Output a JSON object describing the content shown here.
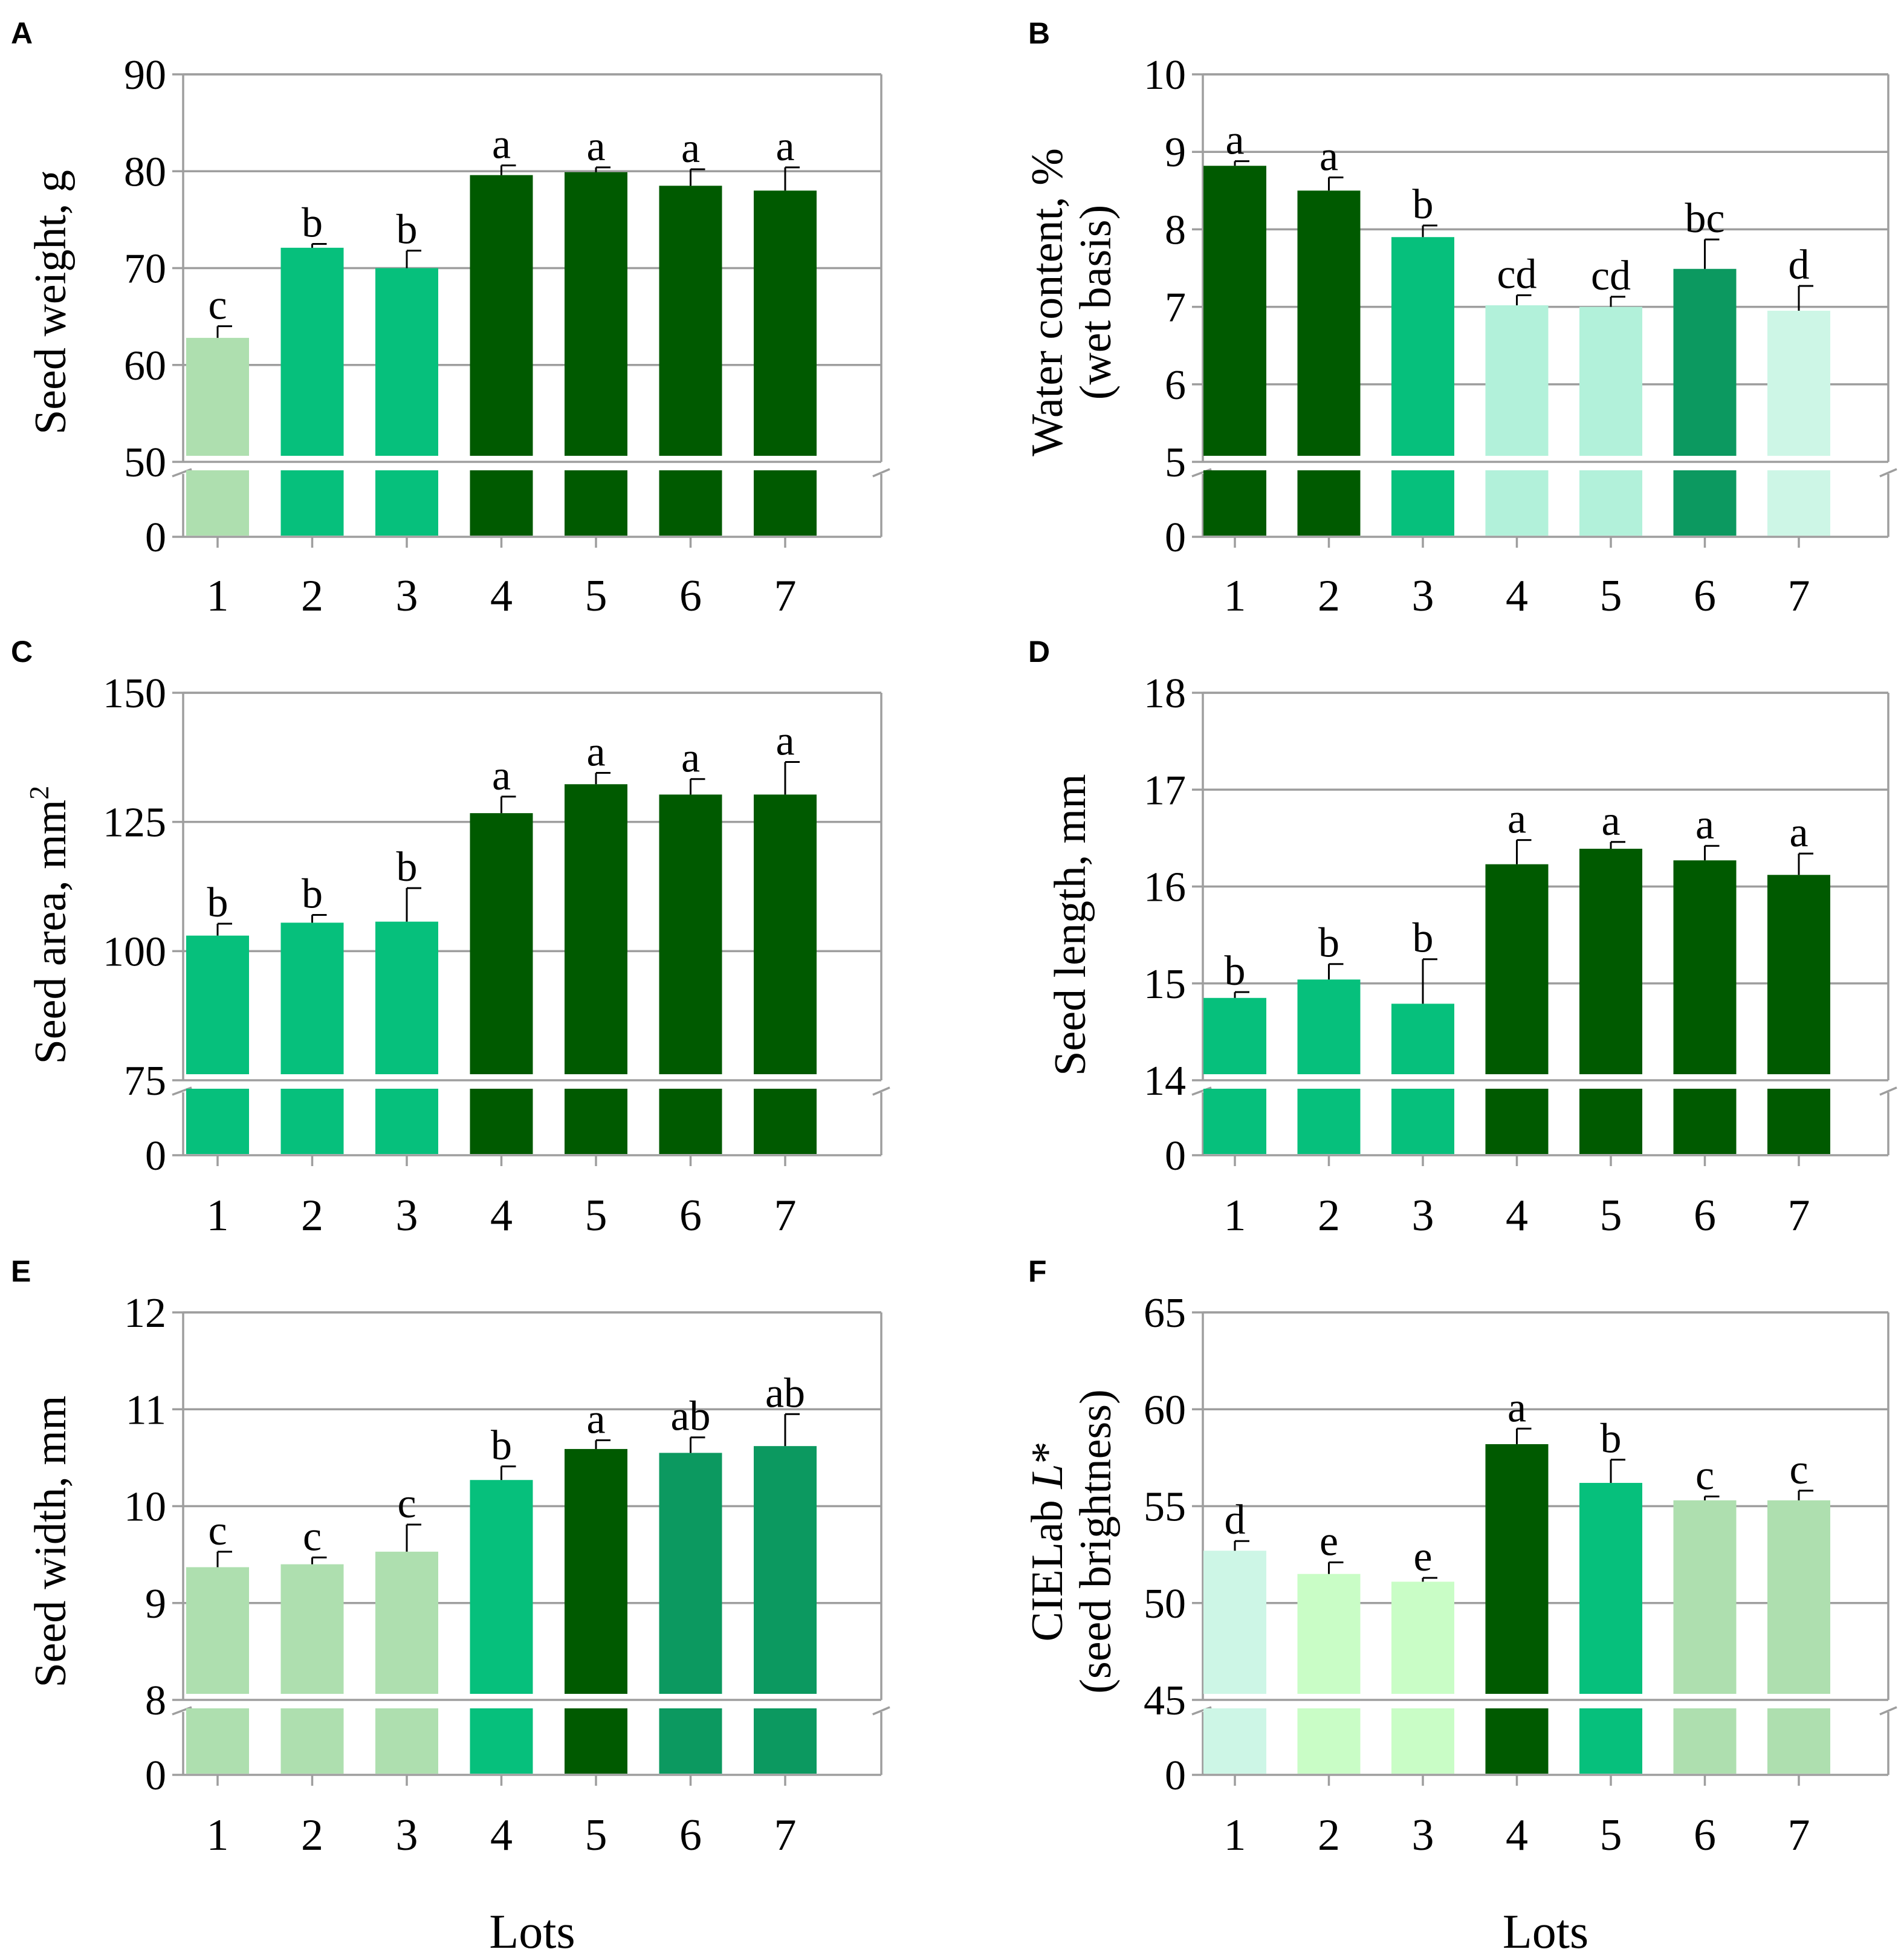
{
  "figure": {
    "x_title": "Lots",
    "categories": [
      "1",
      "2",
      "3",
      "4",
      "5",
      "6",
      "7"
    ]
  },
  "palette": {
    "darkgreen": "#005a00",
    "medgreen": "#0c9960",
    "green": "#06c07c",
    "mint": "#b2f1da",
    "palemint": "#cdf6e6",
    "palegreen": "#aedfaf",
    "lime": "#c9fdc6",
    "axis": "#9e9e9e",
    "text": "#000000"
  },
  "chart_data": [
    {
      "panel": "A",
      "type": "bar",
      "ylabel": "Seed weight, g",
      "ylabel_lines": [
        "Seed weight, g"
      ],
      "categories": [
        "1",
        "2",
        "3",
        "4",
        "5",
        "6",
        "7"
      ],
      "values": [
        62.8,
        72.1,
        70.0,
        79.6,
        79.9,
        78.5,
        78.0
      ],
      "errors": [
        1.2,
        0.4,
        1.8,
        1.0,
        0.5,
        1.7,
        2.4
      ],
      "letters": [
        "c",
        "b",
        "b",
        "a",
        "a",
        "a",
        "a"
      ],
      "colors": [
        "palegreen",
        "green",
        "green",
        "darkgreen",
        "darkgreen",
        "darkgreen",
        "darkgreen"
      ],
      "ylim": [
        50,
        90
      ],
      "yticks": [
        50,
        60,
        70,
        80,
        90
      ],
      "break_label": "0",
      "show_xlabel": false
    },
    {
      "panel": "B",
      "type": "bar",
      "ylabel": "Water content, % (wet basis)",
      "ylabel_lines": [
        "Water content, %",
        "(wet basis)"
      ],
      "categories": [
        "1",
        "2",
        "3",
        "4",
        "5",
        "6",
        "7"
      ],
      "values": [
        8.82,
        8.5,
        7.9,
        7.02,
        7.0,
        7.49,
        6.95
      ],
      "errors": [
        0.06,
        0.17,
        0.15,
        0.13,
        0.13,
        0.38,
        0.32
      ],
      "letters": [
        "a",
        "a",
        "b",
        "cd",
        "cd",
        "bc",
        "d"
      ],
      "colors": [
        "darkgreen",
        "darkgreen",
        "green",
        "mint",
        "mint",
        "medgreen",
        "palemint"
      ],
      "ylim": [
        5,
        10
      ],
      "yticks": [
        5,
        6,
        7,
        8,
        9,
        10
      ],
      "break_label": "0",
      "show_xlabel": false
    },
    {
      "panel": "C",
      "type": "bar",
      "ylabel": "Seed area, mm2",
      "ylabel_lines": [
        "Seed area, mm"
      ],
      "ylabel_sup": "2",
      "categories": [
        "1",
        "2",
        "3",
        "4",
        "5",
        "6",
        "7"
      ],
      "values": [
        103.0,
        105.5,
        105.7,
        126.7,
        132.3,
        130.3,
        130.3
      ],
      "errors": [
        2.3,
        1.5,
        6.5,
        3.2,
        2.2,
        3.0,
        6.3
      ],
      "letters": [
        "b",
        "b",
        "b",
        "a",
        "a",
        "a",
        "a"
      ],
      "colors": [
        "green",
        "green",
        "green",
        "darkgreen",
        "darkgreen",
        "darkgreen",
        "darkgreen"
      ],
      "ylim": [
        75,
        150
      ],
      "yticks": [
        75,
        100,
        125,
        150
      ],
      "break_label": "0",
      "show_xlabel": false
    },
    {
      "panel": "D",
      "type": "bar",
      "ylabel": "Seed length, mm",
      "ylabel_lines": [
        "Seed length, mm"
      ],
      "categories": [
        "1",
        "2",
        "3",
        "4",
        "5",
        "6",
        "7"
      ],
      "values": [
        14.85,
        15.04,
        14.79,
        16.23,
        16.39,
        16.27,
        16.12
      ],
      "errors": [
        0.06,
        0.16,
        0.46,
        0.25,
        0.07,
        0.15,
        0.22
      ],
      "letters": [
        "b",
        "b",
        "b",
        "a",
        "a",
        "a",
        "a"
      ],
      "colors": [
        "green",
        "green",
        "green",
        "darkgreen",
        "darkgreen",
        "darkgreen",
        "darkgreen"
      ],
      "ylim": [
        14,
        18
      ],
      "yticks": [
        14,
        15,
        16,
        17,
        18
      ],
      "break_label": "0",
      "show_xlabel": false
    },
    {
      "panel": "E",
      "type": "bar",
      "ylabel": "Seed width, mm",
      "ylabel_lines": [
        "Seed width, mm"
      ],
      "categories": [
        "1",
        "2",
        "3",
        "4",
        "5",
        "6",
        "7"
      ],
      "values": [
        9.37,
        9.4,
        9.53,
        10.27,
        10.59,
        10.55,
        10.62
      ],
      "errors": [
        0.16,
        0.07,
        0.28,
        0.14,
        0.09,
        0.16,
        0.33
      ],
      "letters": [
        "c",
        "c",
        "c",
        "b",
        "a",
        "ab",
        "ab"
      ],
      "colors": [
        "palegreen",
        "palegreen",
        "palegreen",
        "green",
        "darkgreen",
        "medgreen",
        "medgreen"
      ],
      "ylim": [
        8,
        12
      ],
      "yticks": [
        8,
        9,
        10,
        11,
        12
      ],
      "break_label": "0",
      "show_xlabel": true
    },
    {
      "panel": "F",
      "type": "bar",
      "ylabel": "CIELab L* (seed brightness)",
      "ylabel_lines": [
        "(seed brightness)"
      ],
      "ylabel_first": {
        "before": "CIELab ",
        "italic": "L",
        "after": "*"
      },
      "categories": [
        "1",
        "2",
        "3",
        "4",
        "5",
        "6",
        "7"
      ],
      "values": [
        52.7,
        51.5,
        51.1,
        58.2,
        56.2,
        55.3,
        55.3
      ],
      "errors": [
        0.5,
        0.6,
        0.2,
        0.8,
        1.2,
        0.2,
        0.5
      ],
      "letters": [
        "d",
        "e",
        "e",
        "a",
        "b",
        "c",
        "c"
      ],
      "colors": [
        "palemint",
        "lime",
        "lime",
        "darkgreen",
        "green",
        "palegreen",
        "palegreen"
      ],
      "ylim": [
        45,
        65
      ],
      "yticks": [
        45,
        50,
        55,
        60,
        65
      ],
      "break_label": "0",
      "show_xlabel": true
    }
  ]
}
